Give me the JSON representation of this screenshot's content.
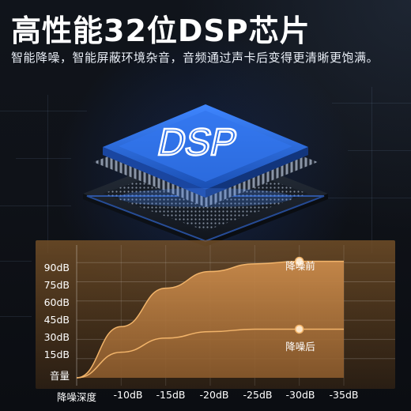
{
  "headline": "高性能32位DSP芯片",
  "subtitle": "智能降噪，智能屏蔽环境杂音，音频通过声卡后变得更清晰更饱满。",
  "chip": {
    "label": "DSP"
  },
  "colors": {
    "accent": "#f2b46a",
    "chip_blue": "#2b6fd8",
    "curve_fill": "#b87a3c"
  },
  "chart_data": {
    "type": "area",
    "ylabel": "音量",
    "xlabel": "降噪深度",
    "categories": [
      "-10dB",
      "-15dB",
      "-20dB",
      "-25dB",
      "-30dB",
      "-35dB"
    ],
    "yticks": [
      "90dB",
      "75dB",
      "60dB",
      "45dB",
      "30dB",
      "15dB"
    ],
    "ylim": [
      0,
      100
    ],
    "series": [
      {
        "name": "降噪前",
        "values": [
          40,
          70,
          83,
          89,
          91,
          91
        ]
      },
      {
        "name": "降噪后",
        "values": [
          20,
          31,
          36,
          38,
          38,
          38
        ]
      }
    ]
  }
}
